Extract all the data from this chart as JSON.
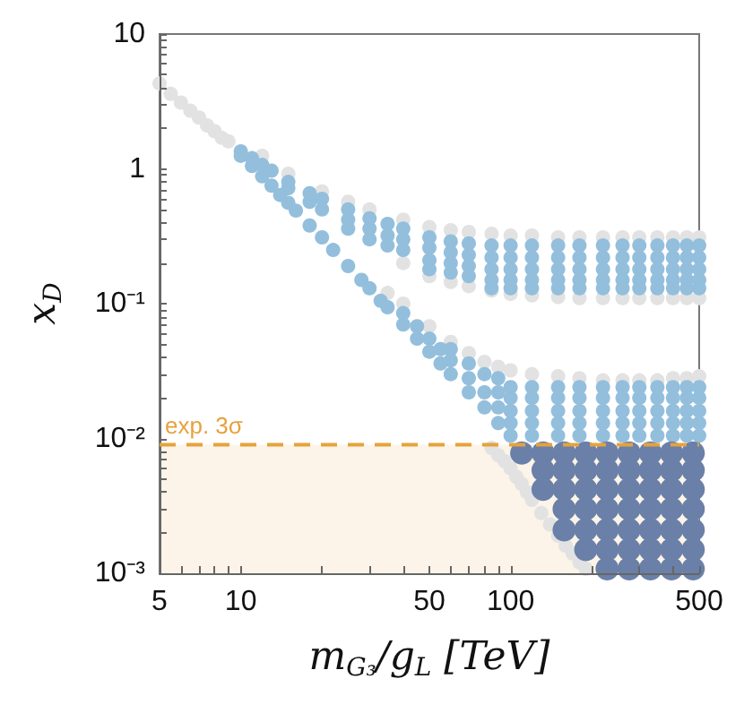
{
  "chart_data": {
    "type": "scatter",
    "xlabel": "m$_{G₃}$/g$_{L}$ [TeV]",
    "ylabel": "x$_{D}$",
    "log": "xy",
    "marker": "circle",
    "xlim": [
      5,
      500
    ],
    "ylim": [
      0.001,
      10
    ],
    "xticks": [
      5,
      10,
      50,
      100,
      500,
      {
        "value": 6,
        "label": null
      },
      {
        "value": 7,
        "label": null
      },
      {
        "value": 8,
        "label": null
      },
      {
        "value": 9,
        "label": null
      },
      {
        "value": 20,
        "label": null
      },
      {
        "value": 30,
        "label": null
      },
      {
        "value": 40,
        "label": null
      },
      {
        "value": 60,
        "label": null
      },
      {
        "value": 70,
        "label": null
      },
      {
        "value": 80,
        "label": null
      },
      {
        "value": 90,
        "label": null
      },
      {
        "value": 200,
        "label": null
      },
      {
        "value": 300,
        "label": null
      },
      {
        "value": 400,
        "label": null
      }
    ],
    "yticks": [
      {
        "value": 0.001,
        "label": "10⁻³"
      },
      {
        "value": 0.01,
        "label": "10⁻²"
      },
      {
        "value": 0.1,
        "label": "10⁻¹"
      },
      1,
      10,
      {
        "value": 0.002,
        "label": null
      },
      {
        "value": 0.003,
        "label": null
      },
      {
        "value": 0.004,
        "label": null
      },
      {
        "value": 0.005,
        "label": null
      },
      {
        "value": 0.006,
        "label": null
      },
      {
        "value": 0.007,
        "label": null
      },
      {
        "value": 0.008,
        "label": null
      },
      {
        "value": 0.009,
        "label": null
      },
      {
        "value": 0.02,
        "label": null
      },
      {
        "value": 0.03,
        "label": null
      },
      {
        "value": 0.04,
        "label": null
      },
      {
        "value": 0.05,
        "label": null
      },
      {
        "value": 0.06,
        "label": null
      },
      {
        "value": 0.07,
        "label": null
      },
      {
        "value": 0.08,
        "label": null
      },
      {
        "value": 0.09,
        "label": null
      },
      {
        "value": 0.2,
        "label": null
      },
      {
        "value": 0.3,
        "label": null
      },
      {
        "value": 0.4,
        "label": null
      },
      {
        "value": 0.5,
        "label": null
      },
      {
        "value": 0.6,
        "label": null
      },
      {
        "value": 0.7,
        "label": null
      },
      {
        "value": 0.8,
        "label": null
      },
      {
        "value": 0.9,
        "label": null
      },
      {
        "value": 2,
        "label": null
      },
      {
        "value": 3,
        "label": null
      },
      {
        "value": 4,
        "label": null
      },
      {
        "value": 5,
        "label": null
      },
      {
        "value": 6,
        "label": null
      },
      {
        "value": 7,
        "label": null
      },
      {
        "value": 8,
        "label": null
      },
      {
        "value": 9,
        "label": null
      }
    ],
    "bands": [
      {
        "axis": "y",
        "from": 0.001,
        "to": 0.009,
        "color": "#fcf4e8"
      }
    ],
    "ref_lines": [
      {
        "axis": "y",
        "value": 0.009,
        "label": "exp. 3σ",
        "color": "#e6a23c",
        "line_style": "dashed"
      }
    ],
    "series": [
      {
        "color": "#e2e2e2",
        "x": [
          5,
          5.5,
          6,
          6.5,
          7,
          7.5,
          8,
          8.5,
          9,
          12,
          15,
          20,
          25,
          30,
          40,
          50,
          60,
          70,
          85,
          100,
          120,
          150,
          180,
          220,
          260,
          300,
          350,
          400,
          450,
          500,
          40,
          50,
          60,
          70,
          85,
          100,
          120,
          150,
          180,
          220,
          260,
          300,
          350,
          400,
          450,
          500,
          35,
          40,
          50,
          60,
          70,
          80,
          90,
          100,
          120,
          150,
          180,
          220,
          260,
          300,
          350,
          400,
          450,
          500,
          85,
          90,
          95,
          100,
          105,
          110,
          115,
          120,
          130,
          140,
          150,
          160,
          170,
          180,
          190
        ],
        "values": [
          4.3,
          3.6,
          3.1,
          2.7,
          2.4,
          2.1,
          1.9,
          1.7,
          1.6,
          1.25,
          0.92,
          0.68,
          0.57,
          0.5,
          0.42,
          0.37,
          0.35,
          0.34,
          0.33,
          0.32,
          0.32,
          0.31,
          0.31,
          0.31,
          0.31,
          0.31,
          0.31,
          0.31,
          0.31,
          0.31,
          0.2,
          0.16,
          0.145,
          0.135,
          0.125,
          0.118,
          0.115,
          0.112,
          0.11,
          0.11,
          0.11,
          0.11,
          0.11,
          0.11,
          0.11,
          0.11,
          0.12,
          0.1,
          0.068,
          0.052,
          0.043,
          0.037,
          0.034,
          0.032,
          0.03,
          0.029,
          0.028,
          0.027,
          0.027,
          0.027,
          0.027,
          0.028,
          0.028,
          0.029,
          0.0085,
          0.0075,
          0.0068,
          0.006,
          0.0052,
          0.0046,
          0.004,
          0.0035,
          0.0028,
          0.0023,
          0.0019,
          0.0016,
          0.0014,
          0.0012,
          0.00108
        ]
      },
      {
        "color": "#93bfdd",
        "x": [
          10,
          11,
          12,
          13,
          15,
          15,
          18,
          18,
          20,
          20,
          25,
          25,
          25,
          30,
          30,
          30,
          35,
          35,
          35,
          40,
          40,
          40,
          50,
          50,
          50,
          50,
          60,
          60,
          60,
          60,
          70,
          70,
          70,
          70,
          85,
          85,
          85,
          85,
          85,
          100,
          100,
          100,
          100,
          100,
          120,
          120,
          120,
          120,
          120,
          150,
          150,
          150,
          150,
          150,
          180,
          180,
          180,
          180,
          180,
          220,
          220,
          220,
          220,
          220,
          260,
          260,
          260,
          260,
          260,
          300,
          300,
          300,
          300,
          300,
          350,
          350,
          350,
          350,
          350,
          400,
          400,
          400,
          400,
          400,
          450,
          450,
          450,
          450,
          450,
          500,
          500,
          500,
          500,
          500,
          10,
          11,
          12,
          13,
          14,
          15,
          16,
          18,
          20,
          22,
          25,
          28,
          30,
          33,
          35,
          40,
          40,
          45,
          45,
          50,
          50,
          55,
          55,
          60,
          60,
          60,
          70,
          70,
          70,
          80,
          80,
          80,
          90,
          90,
          90,
          90,
          100,
          100,
          100,
          100,
          100,
          120,
          120,
          120,
          120,
          120,
          150,
          150,
          150,
          150,
          150,
          180,
          180,
          180,
          180,
          180,
          220,
          220,
          220,
          220,
          220,
          260,
          260,
          260,
          260,
          260,
          300,
          300,
          300,
          300,
          300,
          350,
          350,
          350,
          350,
          350,
          400,
          400,
          400,
          400,
          400,
          450,
          450,
          450,
          450,
          450,
          500,
          500,
          500,
          500,
          500
        ],
        "values": [
          1.35,
          1.2,
          1.07,
          0.97,
          0.8,
          0.72,
          0.66,
          0.57,
          0.6,
          0.5,
          0.5,
          0.42,
          0.36,
          0.43,
          0.36,
          0.3,
          0.39,
          0.32,
          0.27,
          0.36,
          0.3,
          0.25,
          0.31,
          0.26,
          0.21,
          0.18,
          0.29,
          0.24,
          0.2,
          0.17,
          0.28,
          0.23,
          0.19,
          0.16,
          0.27,
          0.22,
          0.18,
          0.15,
          0.13,
          0.27,
          0.22,
          0.18,
          0.15,
          0.13,
          0.27,
          0.22,
          0.18,
          0.15,
          0.13,
          0.27,
          0.22,
          0.18,
          0.15,
          0.13,
          0.27,
          0.22,
          0.18,
          0.15,
          0.13,
          0.27,
          0.22,
          0.18,
          0.15,
          0.13,
          0.27,
          0.22,
          0.18,
          0.15,
          0.13,
          0.27,
          0.22,
          0.18,
          0.15,
          0.13,
          0.27,
          0.22,
          0.18,
          0.15,
          0.13,
          0.27,
          0.22,
          0.18,
          0.15,
          0.13,
          0.27,
          0.22,
          0.18,
          0.15,
          0.13,
          0.27,
          0.22,
          0.18,
          0.15,
          0.13,
          1.25,
          1.05,
          0.88,
          0.75,
          0.64,
          0.56,
          0.49,
          0.38,
          0.31,
          0.25,
          0.19,
          0.15,
          0.13,
          0.105,
          0.094,
          0.07,
          0.085,
          0.055,
          0.068,
          0.044,
          0.055,
          0.036,
          0.046,
          0.03,
          0.038,
          0.046,
          0.022,
          0.028,
          0.036,
          0.017,
          0.022,
          0.03,
          0.013,
          0.017,
          0.022,
          0.028,
          0.0105,
          0.013,
          0.016,
          0.02,
          0.024,
          0.0105,
          0.013,
          0.016,
          0.02,
          0.024,
          0.0105,
          0.013,
          0.016,
          0.02,
          0.024,
          0.0105,
          0.013,
          0.016,
          0.02,
          0.024,
          0.0105,
          0.013,
          0.016,
          0.02,
          0.024,
          0.0105,
          0.013,
          0.016,
          0.02,
          0.024,
          0.0105,
          0.013,
          0.016,
          0.02,
          0.024,
          0.0105,
          0.013,
          0.016,
          0.02,
          0.024,
          0.0105,
          0.013,
          0.016,
          0.02,
          0.024,
          0.0105,
          0.013,
          0.016,
          0.02,
          0.024,
          0.0105,
          0.013,
          0.016,
          0.02,
          0.024
        ]
      },
      {
        "color": "#6a80a8",
        "x": [
          110,
          132,
          158,
          190,
          228,
          275,
          330,
          395,
          475,
          132,
          158,
          190,
          228,
          275,
          330,
          395,
          475,
          132,
          158,
          190,
          228,
          275,
          330,
          395,
          475,
          158,
          190,
          228,
          275,
          330,
          395,
          475,
          158,
          190,
          228,
          275,
          330,
          395,
          475,
          190,
          228,
          275,
          330,
          395,
          475,
          228,
          275,
          330,
          395,
          475
        ],
        "values": [
          0.0078,
          0.0078,
          0.0078,
          0.0078,
          0.0078,
          0.0078,
          0.0078,
          0.0078,
          0.0078,
          0.0058,
          0.0058,
          0.0058,
          0.0058,
          0.0058,
          0.0058,
          0.0058,
          0.0058,
          0.0042,
          0.0042,
          0.0042,
          0.0042,
          0.0042,
          0.0042,
          0.0042,
          0.0042,
          0.003,
          0.003,
          0.003,
          0.003,
          0.003,
          0.003,
          0.003,
          0.0021,
          0.0021,
          0.0021,
          0.0021,
          0.0021,
          0.0021,
          0.0021,
          0.0015,
          0.0015,
          0.0015,
          0.0015,
          0.0015,
          0.0015,
          0.00108,
          0.00108,
          0.00108,
          0.00108,
          0.00108
        ]
      }
    ]
  }
}
